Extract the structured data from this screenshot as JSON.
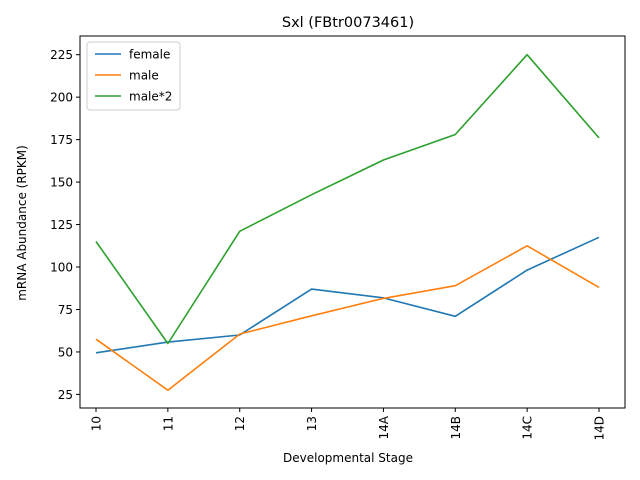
{
  "chart_data": {
    "type": "line",
    "title": "Sxl (FBtr0073461)",
    "xlabel": "Developmental Stage",
    "ylabel": "mRNA Abundance (RPKM)",
    "categories": [
      "10",
      "11",
      "12",
      "13",
      "14A",
      "14B",
      "14C",
      "14D"
    ],
    "series": [
      {
        "name": "female",
        "color": "#1f77b4",
        "values": [
          49.5,
          55.8,
          60.0,
          87.0,
          81.8,
          71.0,
          98.2,
          117.5
        ]
      },
      {
        "name": "male",
        "color": "#ff7f0e",
        "values": [
          57.5,
          27.5,
          60.5,
          71.3,
          81.5,
          89.0,
          112.5,
          88.0
        ]
      },
      {
        "name": "male*2",
        "color": "#2ca02c",
        "values": [
          115.0,
          55.0,
          121.0,
          142.6,
          163.0,
          178.0,
          225.0,
          176.0
        ]
      }
    ],
    "ylim": [
      17,
      236
    ],
    "yticks": [
      25,
      50,
      75,
      100,
      125,
      150,
      175,
      200,
      225
    ],
    "grid": false,
    "legend": "top-left"
  }
}
